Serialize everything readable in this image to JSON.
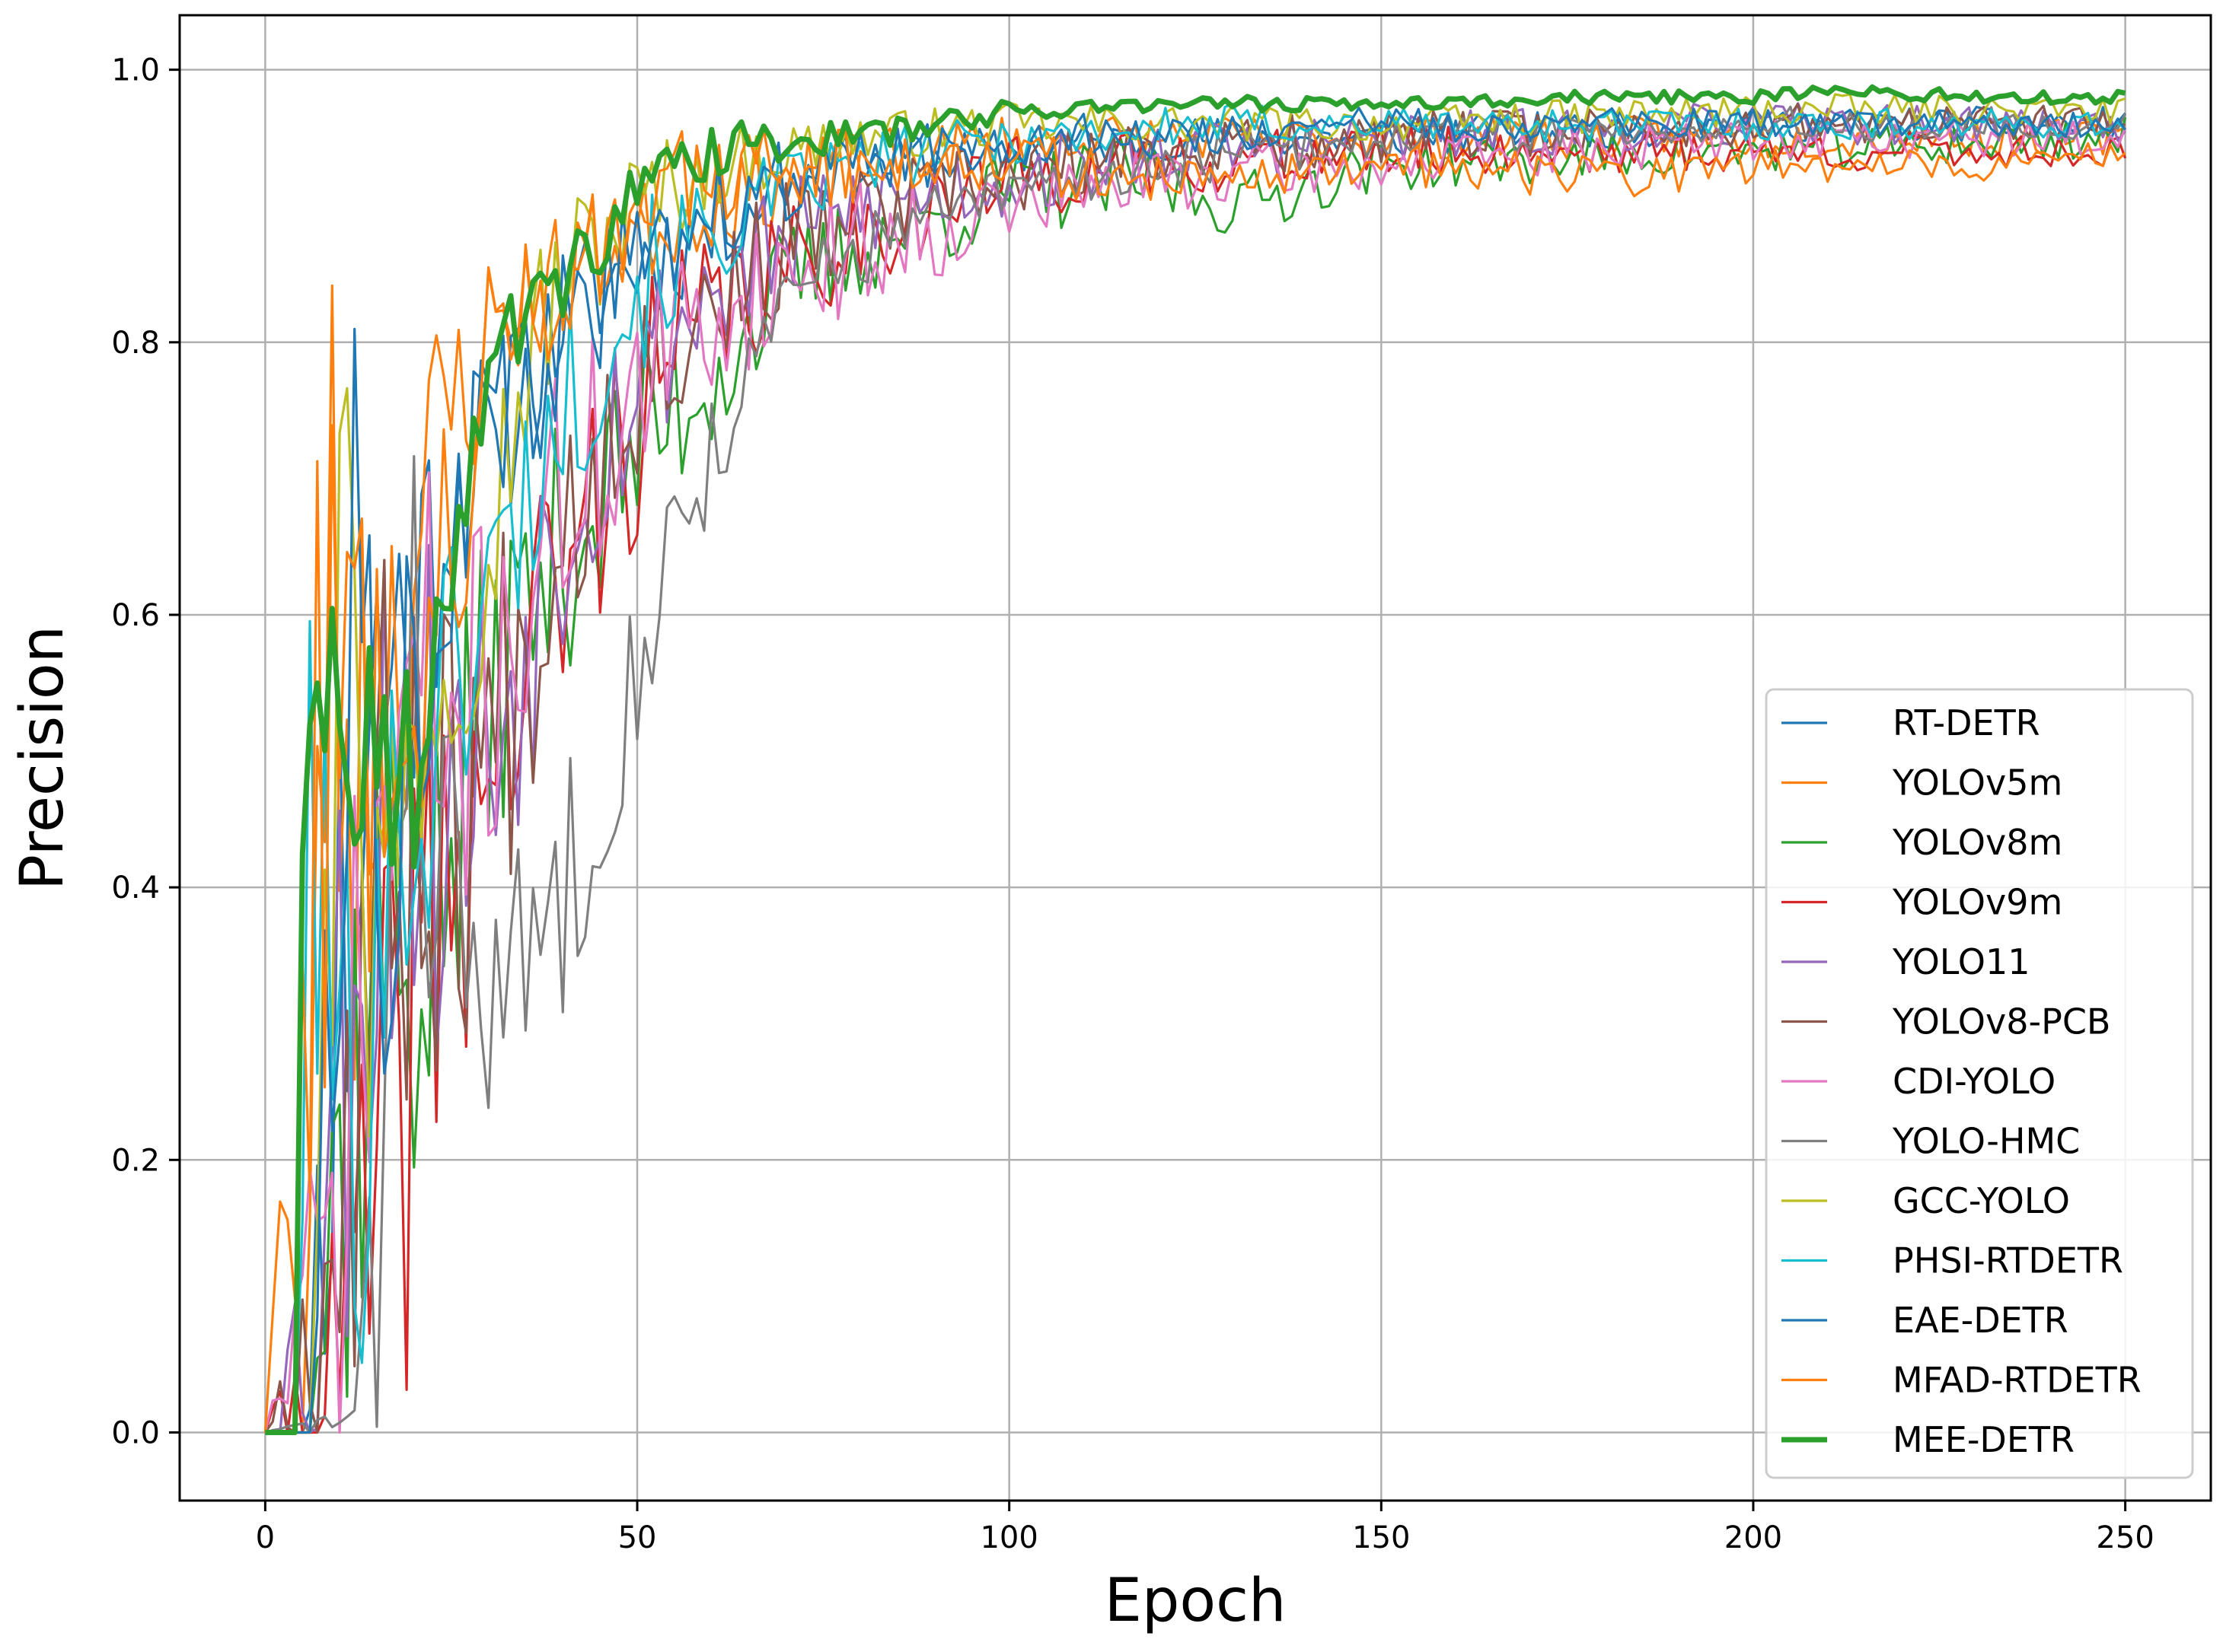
{
  "chart_data": {
    "type": "line",
    "title": "",
    "xlabel": "Epoch",
    "ylabel": "Precision",
    "xlim": [
      -11.5,
      261.5
    ],
    "ylim": [
      -0.05,
      1.04
    ],
    "xticks": [
      0,
      50,
      100,
      150,
      200,
      250
    ],
    "yticks": [
      0.0,
      0.2,
      0.4,
      0.6,
      0.8,
      1.0
    ],
    "xtick_labels": [
      "0",
      "50",
      "100",
      "150",
      "200",
      "250"
    ],
    "ytick_labels": [
      "0.0",
      "0.2",
      "0.4",
      "0.6",
      "0.8",
      "1.0"
    ],
    "grid": true,
    "legend_position": "lower-right",
    "series": [
      {
        "name": "RT-DETR",
        "color": "#1f77b4",
        "width": 3.2,
        "x": [
          0,
          5,
          10,
          15,
          20,
          25,
          30,
          35,
          40,
          50,
          60,
          70,
          80,
          100,
          120,
          150,
          200,
          250
        ],
        "y": [
          0,
          0,
          0.35,
          0.55,
          0.6,
          0.7,
          0.72,
          0.76,
          0.82,
          0.86,
          0.88,
          0.92,
          0.93,
          0.94,
          0.95,
          0.95,
          0.96,
          0.96
        ],
        "noise": [
          0,
          0,
          0.2,
          0.15,
          0.1,
          0.06,
          0.05,
          0.04,
          0.03,
          0.03,
          0.025,
          0.02,
          0.015,
          0.012,
          0.01,
          0.01,
          0.008,
          0.008
        ],
        "seed": 11
      },
      {
        "name": "YOLOv5m",
        "color": "#ff7f0e",
        "width": 3.2,
        "x": [
          0,
          5,
          8,
          12,
          18,
          25,
          32,
          40,
          50,
          60,
          70,
          80,
          100,
          130,
          150,
          200,
          250
        ],
        "y": [
          0,
          0,
          0.62,
          0.5,
          0.6,
          0.75,
          0.82,
          0.85,
          0.88,
          0.9,
          0.92,
          0.93,
          0.95,
          0.95,
          0.95,
          0.95,
          0.95
        ],
        "noise": [
          0,
          0,
          0.2,
          0.18,
          0.12,
          0.06,
          0.04,
          0.03,
          0.025,
          0.02,
          0.02,
          0.015,
          0.012,
          0.01,
          0.01,
          0.01,
          0.008
        ],
        "seed": 23
      },
      {
        "name": "YOLOv8m",
        "color": "#2ca02c",
        "width": 3.2,
        "x": [
          0,
          6,
          10,
          15,
          20,
          25,
          30,
          40,
          50,
          60,
          70,
          80,
          100,
          120,
          130,
          150,
          200,
          250
        ],
        "y": [
          0,
          0,
          0.2,
          0.35,
          0.35,
          0.4,
          0.55,
          0.65,
          0.72,
          0.78,
          0.84,
          0.87,
          0.91,
          0.92,
          0.9,
          0.93,
          0.94,
          0.95
        ],
        "noise": [
          0,
          0,
          0.15,
          0.15,
          0.12,
          0.1,
          0.08,
          0.06,
          0.05,
          0.04,
          0.03,
          0.025,
          0.02,
          0.02,
          0.015,
          0.012,
          0.01,
          0.01
        ],
        "seed": 37
      },
      {
        "name": "YOLOv9m",
        "color": "#d62728",
        "width": 3.2,
        "x": [
          0,
          10,
          15,
          20,
          25,
          30,
          40,
          50,
          60,
          70,
          80,
          100,
          120,
          150,
          200,
          250
        ],
        "y": [
          0,
          0.05,
          0.15,
          0.3,
          0.4,
          0.5,
          0.62,
          0.75,
          0.82,
          0.85,
          0.88,
          0.92,
          0.93,
          0.94,
          0.94,
          0.94
        ],
        "noise": [
          0,
          0.08,
          0.15,
          0.15,
          0.12,
          0.1,
          0.08,
          0.06,
          0.04,
          0.03,
          0.025,
          0.02,
          0.015,
          0.012,
          0.01,
          0.008
        ],
        "seed": 41
      },
      {
        "name": "YOLO11",
        "color": "#9467bd",
        "width": 3.2,
        "x": [
          0,
          7,
          12,
          18,
          25,
          30,
          40,
          50,
          60,
          70,
          80,
          100,
          120,
          150,
          200,
          250
        ],
        "y": [
          0,
          0.1,
          0.4,
          0.5,
          0.45,
          0.5,
          0.68,
          0.78,
          0.84,
          0.87,
          0.9,
          0.92,
          0.94,
          0.95,
          0.96,
          0.96
        ],
        "noise": [
          0,
          0.1,
          0.2,
          0.15,
          0.12,
          0.1,
          0.07,
          0.05,
          0.035,
          0.03,
          0.025,
          0.02,
          0.015,
          0.012,
          0.01,
          0.008
        ],
        "seed": 53
      },
      {
        "name": "YOLOv8-PCB",
        "color": "#8c564b",
        "width": 3.2,
        "x": [
          0,
          8,
          12,
          18,
          25,
          30,
          40,
          50,
          60,
          70,
          80,
          100,
          120,
          150,
          200,
          250
        ],
        "y": [
          0,
          0.1,
          0.3,
          0.45,
          0.45,
          0.5,
          0.68,
          0.78,
          0.83,
          0.87,
          0.89,
          0.92,
          0.94,
          0.95,
          0.96,
          0.96
        ],
        "noise": [
          0,
          0.08,
          0.18,
          0.15,
          0.12,
          0.1,
          0.07,
          0.05,
          0.035,
          0.03,
          0.025,
          0.02,
          0.015,
          0.012,
          0.01,
          0.008
        ],
        "seed": 67
      },
      {
        "name": "CDI-YOLO",
        "color": "#e377c2",
        "width": 3.2,
        "x": [
          0,
          10,
          15,
          20,
          25,
          30,
          40,
          50,
          60,
          70,
          80,
          100,
          120,
          150,
          200,
          250
        ],
        "y": [
          0,
          0.15,
          0.4,
          0.55,
          0.5,
          0.55,
          0.68,
          0.76,
          0.82,
          0.85,
          0.87,
          0.9,
          0.92,
          0.93,
          0.95,
          0.95
        ],
        "noise": [
          0,
          0.12,
          0.18,
          0.12,
          0.1,
          0.08,
          0.07,
          0.05,
          0.04,
          0.03,
          0.03,
          0.02,
          0.015,
          0.012,
          0.01,
          0.008
        ],
        "seed": 71
      },
      {
        "name": "YOLO-HMC",
        "color": "#7f7f7f",
        "width": 3.2,
        "x": [
          0,
          12,
          15,
          18,
          22,
          25,
          30,
          35,
          40,
          45,
          50,
          55,
          60,
          65,
          70,
          80,
          100,
          120,
          150,
          200,
          250
        ],
        "y": [
          0,
          0.01,
          0.1,
          0.6,
          0.5,
          0.4,
          0.3,
          0.35,
          0.4,
          0.48,
          0.56,
          0.66,
          0.72,
          0.77,
          0.83,
          0.87,
          0.91,
          0.93,
          0.95,
          0.96,
          0.96
        ],
        "noise": [
          0,
          0.01,
          0.1,
          0.15,
          0.12,
          0.08,
          0.05,
          0.06,
          0.06,
          0.05,
          0.04,
          0.035,
          0.03,
          0.025,
          0.02,
          0.02,
          0.015,
          0.012,
          0.01,
          0.008,
          0.008
        ],
        "seed": 83
      },
      {
        "name": "GCC-YOLO",
        "color": "#bcbd22",
        "width": 3.2,
        "x": [
          0,
          6,
          9,
          11,
          14,
          18,
          22,
          28,
          35,
          40,
          50,
          60,
          70,
          80,
          100,
          150,
          200,
          250
        ],
        "y": [
          0,
          0,
          0.45,
          0.82,
          0.35,
          0.45,
          0.55,
          0.62,
          0.78,
          0.85,
          0.9,
          0.93,
          0.94,
          0.95,
          0.96,
          0.96,
          0.97,
          0.97
        ],
        "noise": [
          0,
          0,
          0.15,
          0.05,
          0.12,
          0.1,
          0.07,
          0.06,
          0.05,
          0.04,
          0.03,
          0.02,
          0.015,
          0.012,
          0.01,
          0.008,
          0.008,
          0.006
        ],
        "seed": 97
      },
      {
        "name": "PHSI-RTDETR",
        "color": "#17becf",
        "width": 3.2,
        "x": [
          0,
          4,
          6,
          9,
          12,
          15,
          20,
          25,
          30,
          40,
          50,
          60,
          70,
          80,
          100,
          130,
          150,
          200,
          250
        ],
        "y": [
          0,
          0,
          0.45,
          0.3,
          0.2,
          0.4,
          0.45,
          0.55,
          0.62,
          0.75,
          0.84,
          0.88,
          0.91,
          0.93,
          0.95,
          0.96,
          0.96,
          0.96,
          0.96
        ],
        "noise": [
          0,
          0,
          0.12,
          0.15,
          0.15,
          0.12,
          0.1,
          0.08,
          0.06,
          0.05,
          0.04,
          0.03,
          0.02,
          0.015,
          0.012,
          0.01,
          0.008,
          0.008,
          0.006
        ],
        "seed": 101
      },
      {
        "name": "EAE-DETR",
        "color": "#1f77b4",
        "width": 3.2,
        "x": [
          0,
          6,
          10,
          12,
          16,
          20,
          25,
          30,
          40,
          50,
          60,
          70,
          80,
          100,
          120,
          150,
          200,
          250
        ],
        "y": [
          0,
          0,
          0.5,
          0.65,
          0.45,
          0.55,
          0.65,
          0.72,
          0.8,
          0.86,
          0.9,
          0.92,
          0.93,
          0.95,
          0.95,
          0.96,
          0.96,
          0.96
        ],
        "noise": [
          0,
          0,
          0.15,
          0.1,
          0.12,
          0.1,
          0.07,
          0.05,
          0.04,
          0.03,
          0.025,
          0.02,
          0.015,
          0.012,
          0.01,
          0.008,
          0.008,
          0.006
        ],
        "seed": 113
      },
      {
        "name": "MFAD-RTDETR",
        "color": "#ff7f0e",
        "width": 3.2,
        "x": [
          0,
          8,
          12,
          18,
          25,
          30,
          40,
          50,
          60,
          70,
          80,
          100,
          110,
          120,
          150,
          180,
          200,
          230,
          250
        ],
        "y": [
          0,
          0.5,
          0.55,
          0.55,
          0.65,
          0.78,
          0.86,
          0.9,
          0.92,
          0.93,
          0.93,
          0.94,
          0.92,
          0.92,
          0.93,
          0.92,
          0.93,
          0.93,
          0.94
        ],
        "noise": [
          0,
          0.2,
          0.15,
          0.1,
          0.07,
          0.05,
          0.04,
          0.03,
          0.025,
          0.02,
          0.02,
          0.015,
          0.015,
          0.012,
          0.01,
          0.01,
          0.008,
          0.008,
          0.006
        ],
        "seed": 127
      },
      {
        "name": "MEE-DETR",
        "color": "#2ca02c",
        "width": 7,
        "x": [
          0,
          4,
          5,
          7,
          9,
          12,
          15,
          20,
          25,
          30,
          35,
          40,
          45,
          50,
          55,
          60,
          70,
          80,
          90,
          100,
          120,
          150,
          180,
          200,
          210,
          230,
          250
        ],
        "y": [
          0,
          0,
          0.42,
          0.5,
          0.68,
          0.4,
          0.45,
          0.5,
          0.65,
          0.8,
          0.82,
          0.84,
          0.88,
          0.91,
          0.93,
          0.94,
          0.95,
          0.95,
          0.96,
          0.97,
          0.975,
          0.975,
          0.98,
          0.98,
          0.985,
          0.98,
          0.98
        ],
        "noise": [
          0,
          0,
          0.02,
          0.1,
          0.06,
          0.12,
          0.1,
          0.06,
          0.04,
          0.025,
          0.02,
          0.02,
          0.02,
          0.015,
          0.012,
          0.012,
          0.01,
          0.008,
          0.006,
          0.005,
          0.004,
          0.003,
          0.003,
          0.003,
          0.003,
          0.003,
          0.003
        ],
        "seed": 131
      }
    ]
  }
}
